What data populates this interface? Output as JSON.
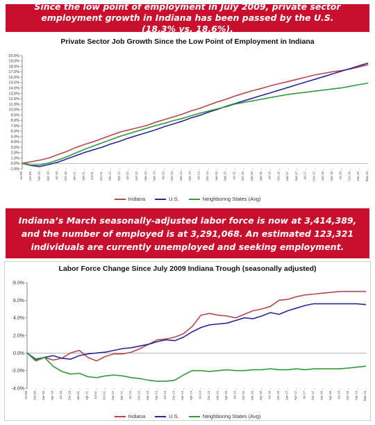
{
  "banner1": {
    "text": "Since the low point of employment in July 2009, private sector employment growth in Indiana has been passed by the U.S. (18.3% vs. 18.6%)."
  },
  "banner2": {
    "text": "Indiana’s March seasonally-adjusted labor force is now at 3,414,389, and the number of employed is at 3,291,068. An estimated 123,321 individuals are currently unemployed and seeking employment."
  },
  "chart_data": [
    {
      "type": "line",
      "title": "Private Sector Job Growth Since the Low Point of Employment in Indiana",
      "x": [
        "Jul-09",
        "Oct-09",
        "Jan-10",
        "Apr-10",
        "Jul-10",
        "Oct-10",
        "Jan-11",
        "Apr-11",
        "Jul-11",
        "Oct-11",
        "Jan-12",
        "Apr-12",
        "Jul-12",
        "Oct-12",
        "Jan-13",
        "Apr-13",
        "Jul-13",
        "Oct-13",
        "Jan-14",
        "Apr-14",
        "Jul-14",
        "Oct-14",
        "Jan-15",
        "Apr-15",
        "Jul-15",
        "Oct-15",
        "Jan-16",
        "Apr-16",
        "Jul-16",
        "Oct-16",
        "Jan-17",
        "Apr-17",
        "Jul-17",
        "Oct-17",
        "Jan-18",
        "Apr-18",
        "Jul-18",
        "Oct-18",
        "Jan-19",
        "Mar-19"
      ],
      "ylim": [
        -1.0,
        20.0
      ],
      "yticks": [
        "-1.0%",
        "0.0%",
        "1.0%",
        "2.0%",
        "3.0%",
        "4.0%",
        "5.0%",
        "6.0%",
        "7.0%",
        "8.0%",
        "9.0%",
        "10.0%",
        "11.0%",
        "12.0%",
        "13.0%",
        "14.0%",
        "15.0%",
        "16.0%",
        "17.0%",
        "18.0%",
        "19.0%",
        "20.0%"
      ],
      "grid": false,
      "legend": "bottom",
      "series": [
        {
          "name": "Indiana",
          "color": "#b5474b",
          "values": [
            0.0,
            0.3,
            0.6,
            1.0,
            1.6,
            2.2,
            2.9,
            3.5,
            4.0,
            4.6,
            5.2,
            5.8,
            6.2,
            6.6,
            7.0,
            7.6,
            8.1,
            8.6,
            9.1,
            9.7,
            10.2,
            10.8,
            11.4,
            11.9,
            12.5,
            13.0,
            13.5,
            13.9,
            14.4,
            14.8,
            15.2,
            15.6,
            16.0,
            16.4,
            16.7,
            17.0,
            17.2,
            17.5,
            17.9,
            18.3
          ]
        },
        {
          "name": "U.S.",
          "color": "#27269a",
          "values": [
            0.0,
            -0.4,
            -0.6,
            -0.2,
            0.2,
            0.8,
            1.4,
            2.0,
            2.5,
            3.0,
            3.6,
            4.1,
            4.7,
            5.2,
            5.7,
            6.2,
            6.8,
            7.3,
            7.8,
            8.4,
            8.9,
            9.5,
            10.0,
            10.6,
            11.1,
            11.6,
            12.1,
            12.6,
            13.1,
            13.6,
            14.1,
            14.6,
            15.1,
            15.6,
            16.1,
            16.6,
            17.1,
            17.6,
            18.1,
            18.6
          ]
        },
        {
          "name": "Neighboring States (Avg)",
          "color": "#2e9a39",
          "values": [
            0.0,
            -0.3,
            -0.3,
            0.1,
            0.6,
            1.2,
            1.9,
            2.6,
            3.2,
            3.8,
            4.4,
            5.0,
            5.5,
            6.0,
            6.5,
            7.0,
            7.4,
            7.9,
            8.3,
            8.8,
            9.3,
            9.7,
            10.1,
            10.5,
            11.0,
            11.3,
            11.6,
            11.9,
            12.2,
            12.5,
            12.8,
            13.0,
            13.2,
            13.4,
            13.6,
            13.8,
            14.0,
            14.3,
            14.6,
            14.9
          ]
        }
      ]
    },
    {
      "type": "line",
      "title": "Labor Force Change Since July 2009 Indiana Trough (seasonally adjusted)",
      "x": [
        "Jul-09",
        "Oct-09",
        "Jan-10",
        "Apr-10",
        "Jul-10",
        "Oct-10",
        "Jan-11",
        "Apr-11",
        "Jul-11",
        "Oct-11",
        "Jan-12",
        "Apr-12",
        "Jul-12",
        "Oct-12",
        "Jan-13",
        "Apr-13",
        "Jul-13",
        "Oct-13",
        "Jan-14",
        "Apr-14",
        "Jul-14",
        "Oct-14",
        "Jan-15",
        "Apr-15",
        "Jul-15",
        "Oct-15",
        "Jan-16",
        "Apr-16",
        "Jul-16",
        "Oct-16",
        "Jan-17",
        "Apr-17",
        "Jul-17",
        "Oct-17",
        "Jan-18",
        "Apr-18",
        "Jul-18",
        "Oct-18",
        "Jan-19",
        "Mar-19"
      ],
      "ylim": [
        -4.0,
        8.0
      ],
      "yticks": [
        "-4.0%",
        "-2.0%",
        "0.0%",
        "2.0%",
        "4.0%",
        "6.0%",
        "8.0%"
      ],
      "grid": false,
      "legend": "bottom",
      "series": [
        {
          "name": "Indiana",
          "color": "#b5474b",
          "values": [
            0.0,
            -0.9,
            -0.5,
            -0.8,
            -0.6,
            0.0,
            0.3,
            -0.5,
            -0.9,
            -0.4,
            -0.1,
            -0.1,
            0.1,
            0.5,
            1.0,
            1.5,
            1.6,
            1.8,
            2.2,
            3.0,
            4.3,
            4.5,
            4.3,
            4.2,
            4.0,
            4.4,
            4.8,
            5.0,
            5.3,
            6.0,
            6.1,
            6.4,
            6.6,
            6.7,
            6.8,
            6.9,
            7.0,
            7.0,
            7.0,
            7.0
          ]
        },
        {
          "name": "U.S.",
          "color": "#27269a",
          "values": [
            0.0,
            -0.7,
            -0.5,
            -0.3,
            -0.6,
            -0.7,
            -0.3,
            -0.1,
            0.0,
            0.1,
            0.3,
            0.5,
            0.6,
            0.8,
            1.0,
            1.3,
            1.5,
            1.4,
            1.8,
            2.4,
            2.9,
            3.2,
            3.3,
            3.4,
            3.7,
            4.0,
            3.9,
            4.2,
            4.6,
            4.4,
            4.8,
            5.1,
            5.4,
            5.6,
            5.6,
            5.6,
            5.6,
            5.6,
            5.6,
            5.5
          ]
        },
        {
          "name": "Neighboring States (Avg)",
          "color": "#2e9a39",
          "values": [
            0.0,
            -0.8,
            -0.5,
            -1.5,
            -2.1,
            -2.4,
            -2.3,
            -2.7,
            -2.8,
            -2.6,
            -2.5,
            -2.6,
            -2.8,
            -2.9,
            -3.1,
            -3.2,
            -3.2,
            -3.1,
            -2.5,
            -2.0,
            -2.0,
            -2.1,
            -2.0,
            -1.9,
            -2.0,
            -2.0,
            -1.9,
            -1.9,
            -1.8,
            -1.9,
            -1.9,
            -1.8,
            -1.9,
            -1.8,
            -1.8,
            -1.8,
            -1.8,
            -1.7,
            -1.6,
            -1.5
          ]
        }
      ]
    }
  ]
}
